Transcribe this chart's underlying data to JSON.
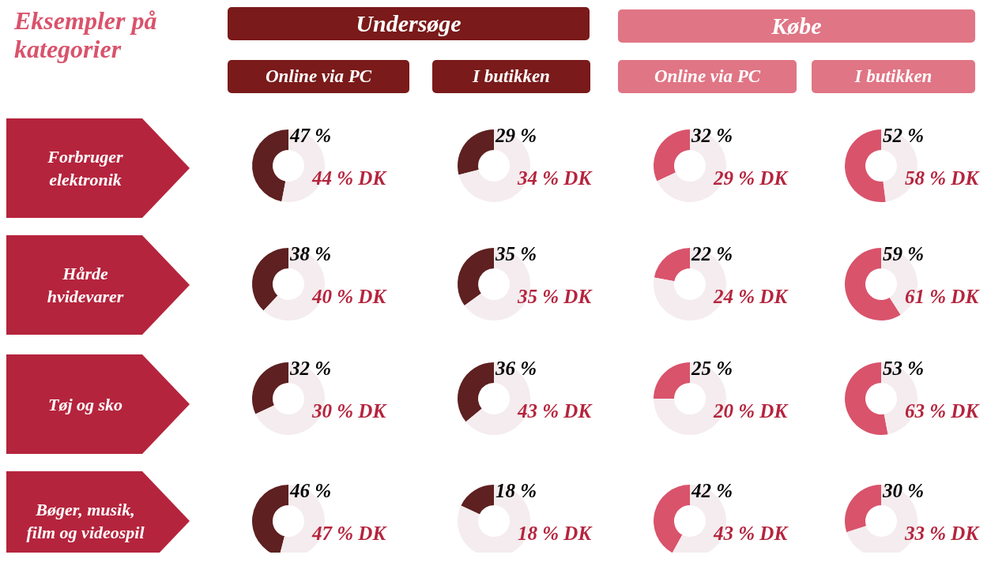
{
  "chart_data": [
    {
      "type": "other",
      "title": "Eksempler på kategorier",
      "annotations": [
        "Undersøge",
        "Købe",
        "Online via PC",
        "I butikken",
        "Online via PC",
        "I butikken",
        "Forbruger elektronik",
        "Hårde hvidevarer",
        "Tøj og sko",
        "Bøger, musik, film og videospil"
      ]
    },
    {
      "type": "donut",
      "categories": [
        null,
        null
      ],
      "values": [
        47,
        53
      ],
      "colors": [
        "#5e2020",
        "#f4ecee"
      ],
      "value_labels": [
        "47 %",
        null
      ],
      "annotations": [
        "44 % DK"
      ]
    },
    {
      "type": "donut",
      "categories": [
        null,
        null
      ],
      "values": [
        29,
        71
      ],
      "colors": [
        "#5e2020",
        "#f4ecee"
      ],
      "value_labels": [
        "29 %",
        null
      ],
      "annotations": [
        "34 % DK"
      ]
    },
    {
      "type": "donut",
      "categories": [
        null,
        null
      ],
      "values": [
        32,
        68
      ],
      "colors": [
        "#d9536b",
        "#f4ecee"
      ],
      "value_labels": [
        "32 %",
        null
      ],
      "annotations": [
        "29 % DK"
      ]
    },
    {
      "type": "donut",
      "categories": [
        null,
        null
      ],
      "values": [
        52,
        48
      ],
      "colors": [
        "#d9536b",
        "#f4ecee"
      ],
      "value_labels": [
        "52 %",
        null
      ],
      "annotations": [
        "58 % DK"
      ]
    },
    {
      "type": "donut",
      "categories": [
        null,
        null
      ],
      "values": [
        38,
        62
      ],
      "colors": [
        "#5e2020",
        "#f4ecee"
      ],
      "value_labels": [
        "38 %",
        null
      ],
      "annotations": [
        "40 % DK"
      ]
    },
    {
      "type": "donut",
      "categories": [
        null,
        null
      ],
      "values": [
        35,
        65
      ],
      "colors": [
        "#5e2020",
        "#f4ecee"
      ],
      "value_labels": [
        "35 %",
        null
      ],
      "annotations": [
        "35 % DK"
      ]
    },
    {
      "type": "donut",
      "categories": [
        null,
        null
      ],
      "values": [
        22,
        78
      ],
      "colors": [
        "#d9536b",
        "#f4ecee"
      ],
      "value_labels": [
        "22 %",
        null
      ],
      "annotations": [
        "24 % DK"
      ]
    },
    {
      "type": "donut",
      "categories": [
        null,
        null
      ],
      "values": [
        59,
        41
      ],
      "colors": [
        "#d9536b",
        "#f4ecee"
      ],
      "value_labels": [
        "59 %",
        null
      ],
      "annotations": [
        "61 % DK"
      ]
    },
    {
      "type": "donut",
      "categories": [
        null,
        null
      ],
      "values": [
        32,
        68
      ],
      "colors": [
        "#5e2020",
        "#f4ecee"
      ],
      "value_labels": [
        "32 %",
        null
      ],
      "annotations": [
        "30 % DK"
      ]
    },
    {
      "type": "donut",
      "categories": [
        null,
        null
      ],
      "values": [
        36,
        64
      ],
      "colors": [
        "#5e2020",
        "#f4ecee"
      ],
      "value_labels": [
        "36 %",
        null
      ],
      "annotations": [
        "43 % DK"
      ]
    },
    {
      "type": "donut",
      "categories": [
        null,
        null
      ],
      "values": [
        25,
        75
      ],
      "colors": [
        "#d9536b",
        "#f4ecee"
      ],
      "value_labels": [
        "25 %",
        null
      ],
      "annotations": [
        "20 % DK"
      ]
    },
    {
      "type": "donut",
      "categories": [
        null,
        null
      ],
      "values": [
        53,
        47
      ],
      "colors": [
        "#d9536b",
        "#f4ecee"
      ],
      "value_labels": [
        "53 %",
        null
      ],
      "annotations": [
        "63 % DK"
      ]
    },
    {
      "type": "donut",
      "categories": [
        null,
        null
      ],
      "values": [
        46,
        54
      ],
      "colors": [
        "#5e2020",
        "#f4ecee"
      ],
      "value_labels": [
        "46 %",
        null
      ],
      "annotations": [
        "47 % DK"
      ]
    },
    {
      "type": "donut",
      "categories": [
        null,
        null
      ],
      "values": [
        18,
        82
      ],
      "colors": [
        "#5e2020",
        "#f4ecee"
      ],
      "value_labels": [
        "18 %",
        null
      ],
      "annotations": [
        "18 % DK"
      ]
    },
    {
      "type": "donut",
      "categories": [
        null,
        null
      ],
      "values": [
        42,
        58
      ],
      "colors": [
        "#d9536b",
        "#f4ecee"
      ],
      "value_labels": [
        "42 %",
        null
      ],
      "annotations": [
        "43 % DK"
      ]
    },
    {
      "type": "donut",
      "categories": [
        null,
        null
      ],
      "values": [
        30,
        70
      ],
      "colors": [
        "#d9536b",
        "#f4ecee"
      ],
      "value_labels": [
        "30 %",
        null
      ],
      "annotations": [
        "33 % DK"
      ]
    }
  ]
}
